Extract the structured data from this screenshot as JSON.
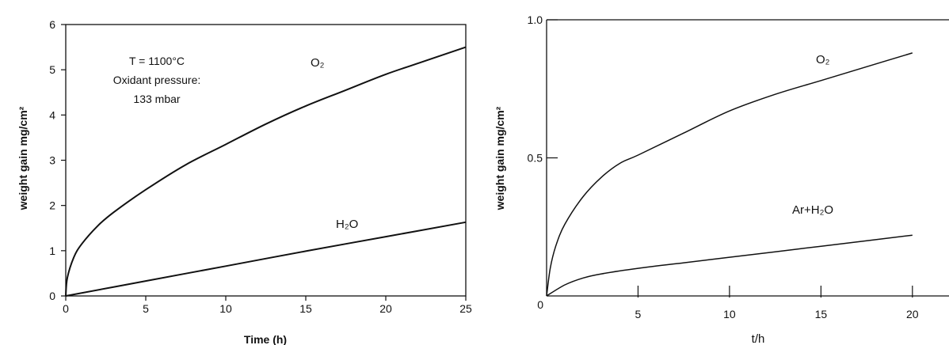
{
  "chart_data": [
    {
      "type": "line",
      "title": "",
      "xlabel": "Time (h)",
      "ylabel": "weight gain mg/cm²",
      "xlim": [
        0,
        25
      ],
      "ylim": [
        0,
        6
      ],
      "xticks": [
        "0",
        "5",
        "10",
        "15",
        "20",
        "25"
      ],
      "yticks": [
        "0",
        "1",
        "2",
        "3",
        "4",
        "5",
        "6"
      ],
      "grid": false,
      "annotation": [
        "T = 1100°C",
        "Oxidant pressure:",
        "133 mbar"
      ],
      "series": [
        {
          "name": "O₂",
          "x": [
            0,
            0.1,
            0.5,
            1,
            2,
            3,
            5,
            7.5,
            10,
            12.5,
            15,
            17.5,
            20,
            22.5,
            25
          ],
          "y": [
            0,
            0.4,
            0.85,
            1.15,
            1.55,
            1.85,
            2.35,
            2.9,
            3.35,
            3.8,
            4.2,
            4.55,
            4.9,
            5.2,
            5.5
          ]
        },
        {
          "name": "H₂O",
          "x": [
            0,
            5,
            10,
            15,
            20,
            25
          ],
          "y": [
            0,
            0.33,
            0.66,
            0.99,
            1.31,
            1.63
          ]
        }
      ]
    },
    {
      "type": "line",
      "title": "",
      "xlabel": "t/h",
      "ylabel": "weight gain mg/cm²",
      "xlim": [
        0,
        22
      ],
      "ylim": [
        0,
        1.0
      ],
      "xticks": [
        "5",
        "10",
        "15",
        "20"
      ],
      "yticks": [
        "0",
        "0.5",
        "1.0"
      ],
      "origin_label": "0",
      "grid": false,
      "series": [
        {
          "name": "O₂",
          "x": [
            0,
            0.2,
            0.5,
            1,
            2,
            3,
            4,
            5,
            7.5,
            10,
            12.5,
            15,
            17.5,
            20
          ],
          "y": [
            0,
            0.1,
            0.18,
            0.26,
            0.36,
            0.43,
            0.48,
            0.51,
            0.59,
            0.67,
            0.73,
            0.78,
            0.83,
            0.88
          ]
        },
        {
          "name": "Ar+H₂O",
          "x": [
            0,
            1,
            2,
            3,
            5,
            7.5,
            10,
            12.5,
            15,
            17.5,
            20
          ],
          "y": [
            0,
            0.04,
            0.065,
            0.08,
            0.1,
            0.12,
            0.14,
            0.16,
            0.18,
            0.2,
            0.22
          ]
        }
      ]
    }
  ]
}
